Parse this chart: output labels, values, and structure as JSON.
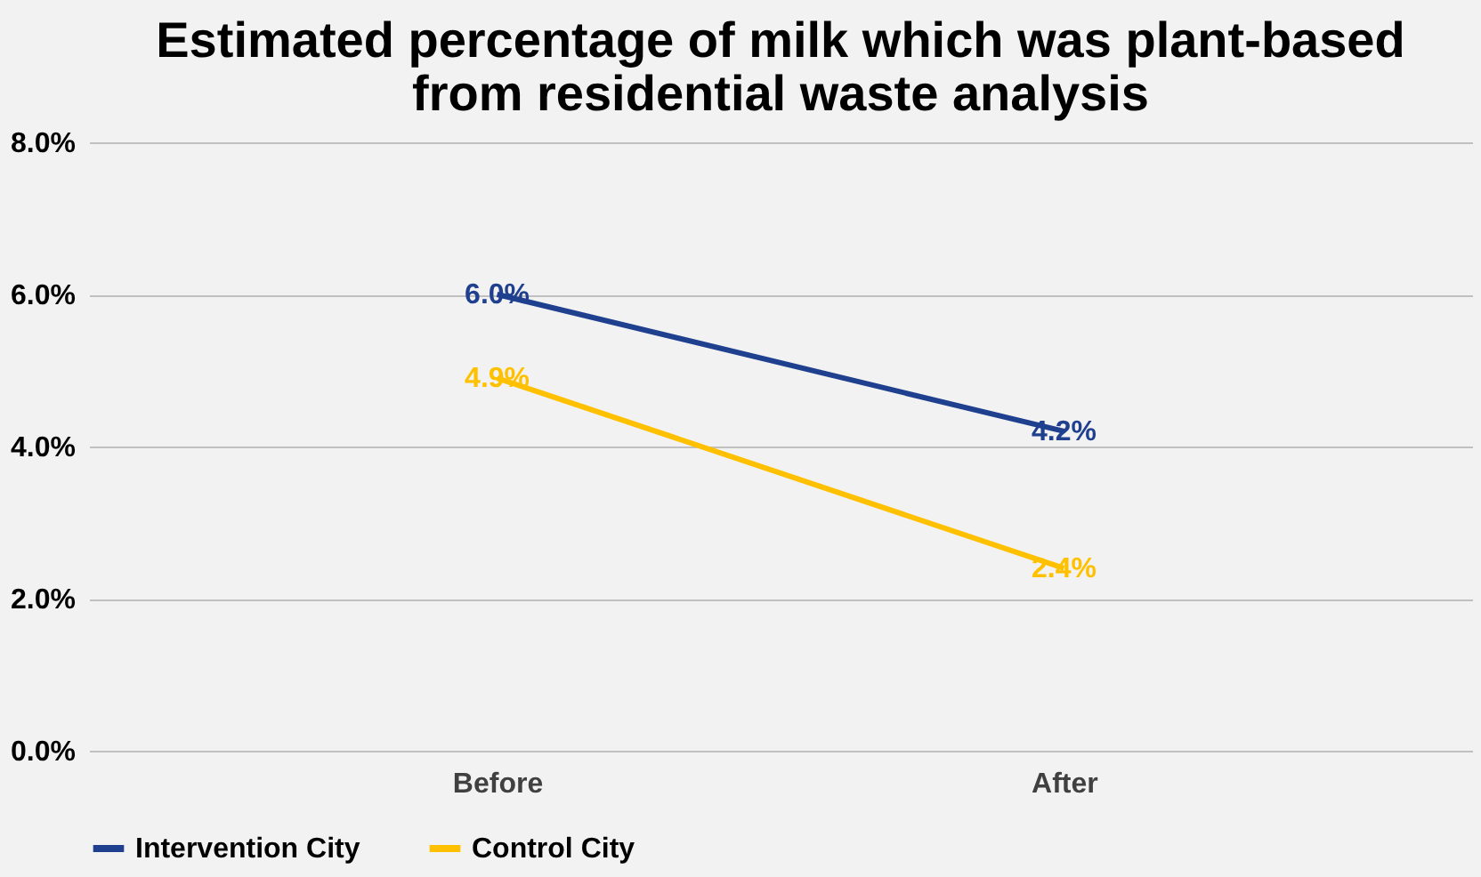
{
  "chart_data": {
    "type": "line",
    "title": "Estimated percentage of milk which was plant-based from residential waste analysis",
    "categories": [
      "Before",
      "After"
    ],
    "series": [
      {
        "name": "Intervention City",
        "color": "#1f3f8f",
        "values": [
          6.0,
          4.2
        ],
        "value_labels": [
          "6.0%",
          "4.2%"
        ]
      },
      {
        "name": "Control City",
        "color": "#ffc000",
        "values": [
          4.9,
          2.4
        ],
        "value_labels": [
          "4.9%",
          "2.4%"
        ]
      }
    ],
    "ylim": [
      0,
      8
    ],
    "yticks": [
      {
        "value": 0,
        "label": "0.0%"
      },
      {
        "value": 2,
        "label": "2.0%"
      },
      {
        "value": 4,
        "label": "4.0%"
      },
      {
        "value": 6,
        "label": "6.0%"
      },
      {
        "value": 8,
        "label": "8.0%"
      }
    ],
    "grid": "y",
    "legend": "bottom",
    "marker": "none",
    "line_style": "solid"
  }
}
